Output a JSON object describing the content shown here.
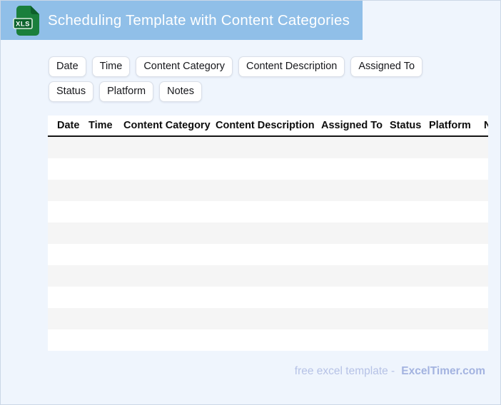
{
  "header": {
    "title": "Scheduling Template with Content Categories",
    "badge": "XLS"
  },
  "chips": [
    "Date",
    "Time",
    "Content Category",
    "Content Description",
    "Assigned To",
    "Status",
    "Platform",
    "Notes"
  ],
  "table": {
    "columns": [
      "Date",
      "Time",
      "Content Category",
      "Content Description",
      "Assigned To",
      "Status",
      "Platform",
      "Notes"
    ],
    "row_count": 10,
    "rows": [
      [],
      [],
      [],
      [],
      [],
      [],
      [],
      [],
      [],
      []
    ]
  },
  "footer": {
    "text": "free excel template -",
    "brand": "ExcelTimer.com"
  },
  "colors": {
    "banner_blue": "#90bfe8",
    "page_background": "#eff5fd",
    "row_stripe_gray": "#f5f5f5",
    "header_rule_black": "#141414",
    "icon_green": "#1a7f3c",
    "icon_green_dark": "#0d5f2b",
    "footer_text": "#b6c2e6",
    "footer_brand": "#a3b3e0"
  }
}
